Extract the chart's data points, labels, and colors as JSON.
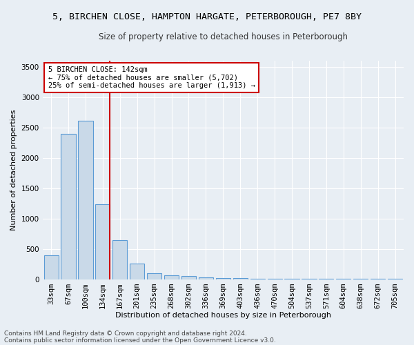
{
  "title": "5, BIRCHEN CLOSE, HAMPTON HARGATE, PETERBOROUGH, PE7 8BY",
  "subtitle": "Size of property relative to detached houses in Peterborough",
  "xlabel": "Distribution of detached houses by size in Peterborough",
  "ylabel": "Number of detached properties",
  "categories": [
    "33sqm",
    "67sqm",
    "100sqm",
    "134sqm",
    "167sqm",
    "201sqm",
    "235sqm",
    "268sqm",
    "302sqm",
    "336sqm",
    "369sqm",
    "403sqm",
    "436sqm",
    "470sqm",
    "504sqm",
    "537sqm",
    "571sqm",
    "604sqm",
    "638sqm",
    "672sqm",
    "705sqm"
  ],
  "values": [
    390,
    2400,
    2610,
    1240,
    640,
    260,
    95,
    60,
    55,
    35,
    20,
    15,
    10,
    8,
    5,
    4,
    3,
    2,
    2,
    1,
    1
  ],
  "bar_color": "#c9d9e8",
  "bar_edge_color": "#5b9bd5",
  "red_line_index": 3,
  "annotation_text": "5 BIRCHEN CLOSE: 142sqm\n← 75% of detached houses are smaller (5,702)\n25% of semi-detached houses are larger (1,913) →",
  "annotation_box_color": "#ffffff",
  "annotation_box_edge": "#cc0000",
  "ylim": [
    0,
    3600
  ],
  "yticks": [
    0,
    500,
    1000,
    1500,
    2000,
    2500,
    3000,
    3500
  ],
  "background_color": "#e8eef4",
  "plot_bg_color": "#e8eef4",
  "grid_color": "#ffffff",
  "footer_line1": "Contains HM Land Registry data © Crown copyright and database right 2024.",
  "footer_line2": "Contains public sector information licensed under the Open Government Licence v3.0.",
  "title_fontsize": 9.5,
  "subtitle_fontsize": 8.5,
  "axis_label_fontsize": 8,
  "tick_fontsize": 7.5,
  "footer_fontsize": 6.5,
  "red_line_color": "#cc0000",
  "annotation_fontsize": 7.5
}
